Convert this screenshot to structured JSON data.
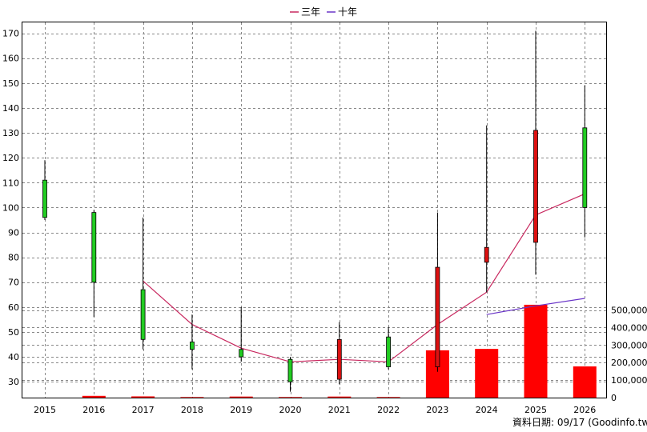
{
  "chart_data": {
    "type": "candlestick",
    "categories": [
      "2015",
      "2016",
      "2017",
      "2018",
      "2019",
      "2020",
      "2021",
      "2022",
      "2023",
      "2024",
      "2025",
      "2026"
    ],
    "ohlc": [
      {
        "open": 96,
        "close": 111,
        "high": 119,
        "low": 95
      },
      {
        "open": 70,
        "close": 98,
        "high": 99,
        "low": 56
      },
      {
        "open": 47,
        "close": 67,
        "high": 96,
        "low": 43
      },
      {
        "open": 43,
        "close": 46,
        "high": 57,
        "low": 35
      },
      {
        "open": 40,
        "close": 43,
        "high": 60,
        "low": 38
      },
      {
        "open": 30,
        "close": 39,
        "high": 40,
        "low": 26
      },
      {
        "open": 47,
        "close": 31,
        "high": 54,
        "low": 29
      },
      {
        "open": 36,
        "close": 48,
        "high": 52,
        "low": 35
      },
      {
        "open": 76,
        "close": 36,
        "high": 98,
        "low": 34
      },
      {
        "open": 84,
        "close": 78,
        "high": 133,
        "low": 66
      },
      {
        "open": 131,
        "close": 86,
        "high": 171,
        "low": 73
      },
      {
        "open": 100,
        "close": 132,
        "high": 149,
        "low": 88
      }
    ],
    "lines": [
      {
        "name": "三年",
        "color": "#c8285f",
        "values": [
          null,
          null,
          70.5,
          53,
          43.5,
          38,
          39,
          38,
          53,
          66,
          97,
          105.5
        ]
      },
      {
        "name": "十年",
        "color": "#6a35c8",
        "values": [
          null,
          null,
          null,
          null,
          null,
          null,
          null,
          null,
          null,
          57,
          60.5,
          63.5
        ]
      }
    ],
    "volume": [
      0,
      10000,
      7000,
      3000,
      6000,
      3000,
      6000,
      3000,
      270000,
      278000,
      530000,
      178000
    ],
    "price_axis": {
      "ticks": [
        30,
        40,
        50,
        60,
        70,
        80,
        90,
        100,
        110,
        120,
        130,
        140,
        150,
        160,
        170
      ],
      "ylim": [
        23,
        175
      ]
    },
    "volume_axis": {
      "ticks": [
        "0",
        "100,000",
        "200,000",
        "300,000",
        "400,000",
        "500,000"
      ],
      "tick_values": [
        0,
        100000,
        200000,
        300000,
        400000,
        500000
      ],
      "ylim": [
        0,
        548000
      ]
    },
    "up_color": "#22cc22",
    "down_color": "#dd1111",
    "volume_color": "#ff0000",
    "grid": true,
    "legend_position": "top-center"
  },
  "legend": {
    "items": [
      {
        "label": "三年",
        "color": "#c8285f"
      },
      {
        "label": "十年",
        "color": "#6a35c8"
      }
    ]
  },
  "source_text": "資料日期: 09/17  (Goodinfo.tw)"
}
